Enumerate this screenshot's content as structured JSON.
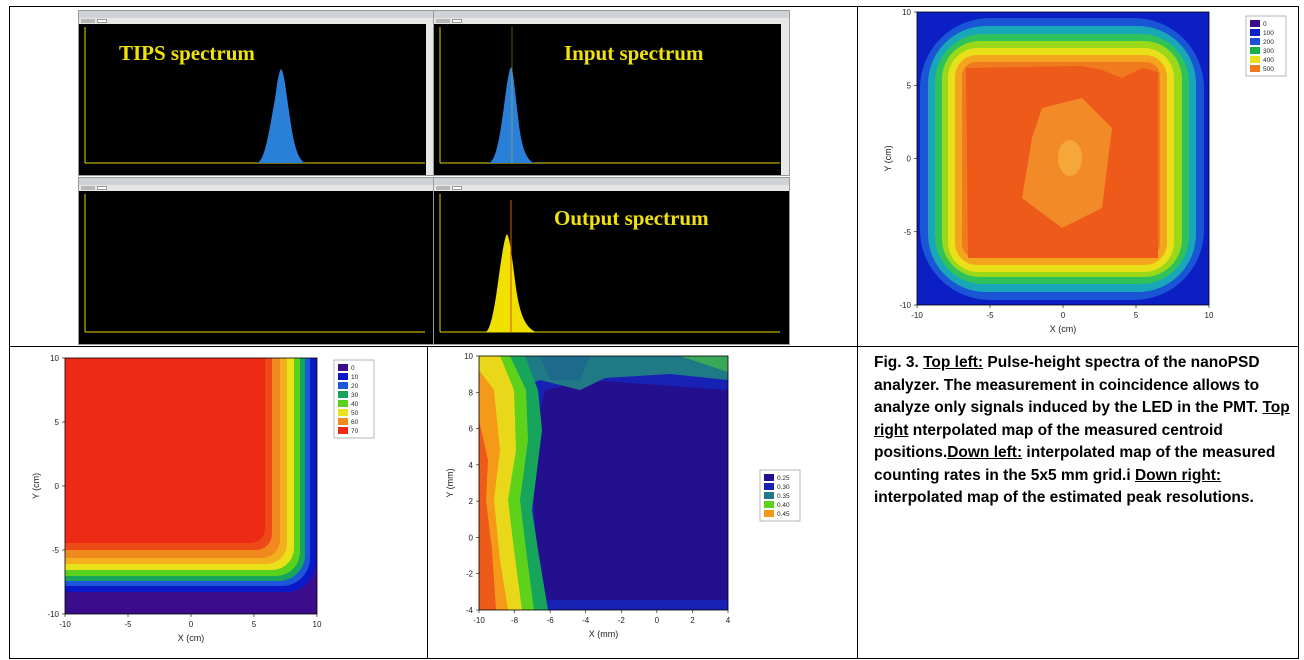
{
  "spectra": {
    "tips_title": "TIPS spectrum",
    "input_title": "Input spectrum",
    "output_title": "Output spectrum"
  },
  "chart_data": [
    {
      "type": "heatmap",
      "name": "centroid-map",
      "xlabel": "X (cm)",
      "ylabel": "Y (cm)",
      "xlim": [
        -10,
        10
      ],
      "ylim": [
        -10,
        10
      ],
      "x_ticks": [
        "-10",
        "-5",
        "0",
        "5",
        "10"
      ],
      "y_ticks": [
        "10",
        "5",
        "0",
        "-5",
        "-10"
      ],
      "legend": [
        "0",
        "100",
        "200",
        "300",
        "400",
        "500"
      ],
      "legend_colors": [
        "#3b0d8c",
        "#0b22c8",
        "#1f4fd8",
        "#19b04a",
        "#e9e21b",
        "#f07a1e"
      ]
    },
    {
      "type": "heatmap",
      "name": "counting-rate-map",
      "xlabel": "X (cm)",
      "ylabel": "Y (cm)",
      "xlim": [
        -10,
        10
      ],
      "ylim": [
        -10,
        10
      ],
      "x_ticks": [
        "-10",
        "-5",
        "0",
        "5",
        "10"
      ],
      "y_ticks": [
        "10",
        "5",
        "0",
        "-5",
        "-10"
      ],
      "legend": [
        "0",
        "10",
        "20",
        "30",
        "40",
        "50",
        "60",
        "70"
      ],
      "legend_colors": [
        "#3b0d8c",
        "#0b18c8",
        "#1d56d8",
        "#17a55c",
        "#58d21e",
        "#e9e21b",
        "#f08a1e",
        "#ee2a14"
      ]
    },
    {
      "type": "heatmap",
      "name": "peak-resolution-map",
      "xlabel": "X (mm)",
      "ylabel": "Y (mm)",
      "xlim": [
        -10,
        5
      ],
      "ylim": [
        -5,
        10
      ],
      "x_ticks": [
        "-10",
        "-8",
        "-6",
        "-4",
        "-2",
        "0",
        "2",
        "4"
      ],
      "y_ticks": [
        "10",
        "8",
        "6",
        "4",
        "2",
        "0",
        "-2",
        "-4"
      ],
      "legend": [
        "0.25",
        "0.30",
        "0.35",
        "0.40",
        "0.45"
      ],
      "legend_colors": [
        "#24108f",
        "#1722b4",
        "#1f7a86",
        "#5ed21a",
        "#f49a18"
      ]
    }
  ],
  "caption": {
    "fig": "Fig. 3.",
    "top_left_label": "Top left:",
    "top_left_text": " Pulse-height spectra of the nanoPSD analyzer. The measurement in coincidence allows to analyze only signals induced by the LED in the PMT.",
    "top_right_label": "Top right",
    "top_right_text": " nterpolated map of the measured centroid positions.",
    "down_left_label": "Down left:",
    "down_left_text": " interpolated map of the measured counting rates in the 5x5 mm grid.i",
    "down_right_label": "Down right:",
    "down_right_text": " interpolated map of the estimated peak resolutions."
  }
}
